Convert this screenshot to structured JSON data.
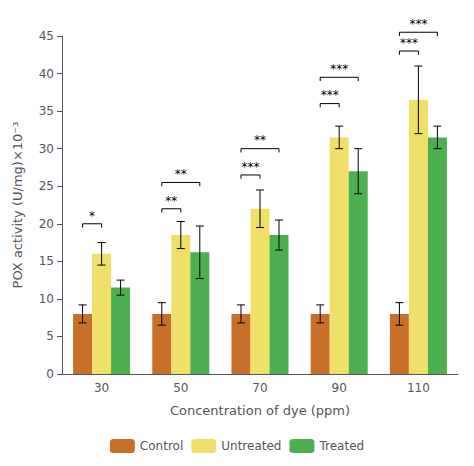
{
  "chart_data": {
    "type": "bar",
    "categories": [
      "30",
      "50",
      "70",
      "90",
      "110"
    ],
    "series": [
      {
        "name": "Control",
        "color": "#c8702a",
        "values": [
          8.0,
          8.0,
          8.0,
          8.0,
          8.0
        ],
        "errors": [
          1.2,
          1.5,
          1.2,
          1.2,
          1.5
        ]
      },
      {
        "name": "Untreated",
        "color": "#f0e06a",
        "values": [
          16.0,
          18.5,
          22.0,
          31.5,
          36.5
        ],
        "errors": [
          1.5,
          1.8,
          2.5,
          1.5,
          4.5
        ]
      },
      {
        "name": "Treated",
        "color": "#4caf50",
        "values": [
          11.5,
          16.2,
          18.5,
          27.0,
          31.5
        ],
        "errors": [
          1.0,
          3.5,
          2.0,
          3.0,
          1.5
        ]
      }
    ],
    "xlabel": "Concentration of dye (ppm)",
    "ylabel": "POX activity (U/mg)×10⁻³",
    "ylim": [
      0,
      45
    ],
    "yticks": [
      0,
      5,
      10,
      15,
      20,
      25,
      30,
      35,
      40,
      45
    ],
    "grid": false,
    "legend": "bottom",
    "annotations": [
      {
        "category": "30",
        "from": "Control",
        "to": "Untreated",
        "y": 20.0,
        "text": "*"
      },
      {
        "category": "50",
        "from": "Control",
        "to": "Untreated",
        "y": 22.0,
        "text": "**"
      },
      {
        "category": "50",
        "from": "Control",
        "to": "Treated",
        "y": 25.5,
        "text": "**"
      },
      {
        "category": "70",
        "from": "Control",
        "to": "Untreated",
        "y": 26.5,
        "text": "***"
      },
      {
        "category": "70",
        "from": "Control",
        "to": "Treated",
        "y": 30.0,
        "text": "**"
      },
      {
        "category": "90",
        "from": "Control",
        "to": "Untreated",
        "y": 36.0,
        "text": "***"
      },
      {
        "category": "90",
        "from": "Control",
        "to": "Treated",
        "y": 39.5,
        "text": "***"
      },
      {
        "category": "110",
        "from": "Control",
        "to": "Untreated",
        "y": 43.0,
        "text": "***"
      },
      {
        "category": "110",
        "from": "Control",
        "to": "Treated",
        "y": 45.5,
        "text": "***"
      }
    ]
  }
}
